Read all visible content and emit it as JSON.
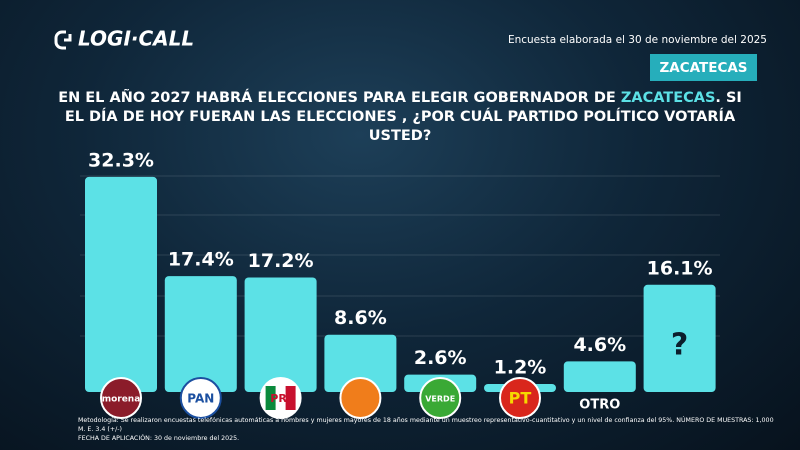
{
  "chart_data": {
    "type": "bar",
    "brand": "LOGI·CALL",
    "subtitle": "Encuesta elaborada el 30 de noviembre del 2025",
    "region": "ZACATECAS",
    "title": [
      "EN EL AÑO 2027 HABRÁ ELECCIONES PARA ELEGIR GOBERNADOR DE ",
      "ZACATECAS",
      ".  SI EL DÍA DE HOY FUERAN LAS ELECCIONES , ¿POR CUÁL PARTIDO POLÍTICO VOTARÍA USTED?"
    ],
    "categories": [
      "morena",
      "PAN",
      "PRI",
      null,
      "VERDE",
      "PT",
      "OTRO",
      "?"
    ],
    "values": [
      32.3,
      17.4,
      17.2,
      8.6,
      2.6,
      1.2,
      4.6,
      16.1
    ],
    "value_labels": [
      "32.3%",
      "17.4%",
      "17.2%",
      "8.6%",
      "2.6%",
      "1.2%",
      "4.6%",
      "16.1%"
    ],
    "color": "#5ce1e6",
    "footnote": [
      "Metodología: Se realizaron encuestas telefónicas automáticas a hombres y mujeres mayores de 18 años mediante un muestreo representativo-cuantitativo y un nivel de confianza del 95%. NÚMERO DE MUESTRAS: 1,000 M. E. 3.4 (+/-)",
      "FECHA DE APLICACIÓN: 30 de noviembre del 2025."
    ]
  }
}
